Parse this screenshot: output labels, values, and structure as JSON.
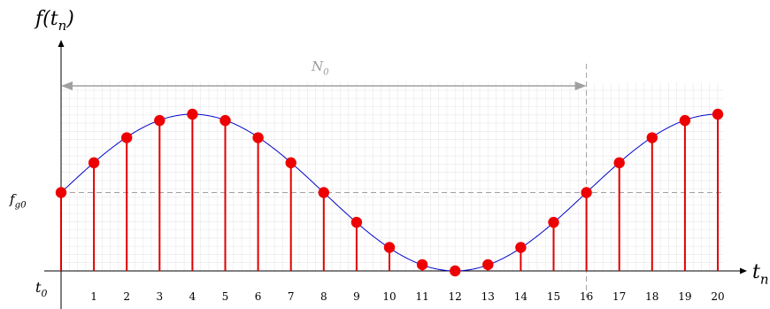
{
  "chart_data": {
    "type": "stem",
    "title": "",
    "xlabel": "t_n",
    "ylabel": "f(t_n)",
    "x_origin_label": "t_0",
    "y_mean_label": "f_g0",
    "period_label": "N_0",
    "period_start": 0,
    "period_end": 16,
    "xlim": [
      0,
      20
    ],
    "ylim": [
      -0.06,
      1.0
    ],
    "mean_value": 0.5,
    "grid": true,
    "x_ticks": [
      "1",
      "2",
      "3",
      "4",
      "5",
      "6",
      "7",
      "8",
      "9",
      "10",
      "11",
      "12",
      "13",
      "14",
      "15",
      "16",
      "17",
      "18",
      "19",
      "20"
    ],
    "series": [
      {
        "x": [
          0,
          1,
          2,
          3,
          4,
          5,
          6,
          7,
          8,
          9,
          10,
          11,
          12,
          13,
          14,
          15,
          16,
          17,
          18,
          19,
          20
        ],
        "values": [
          0.5,
          0.69,
          0.85,
          0.96,
          1.0,
          0.96,
          0.85,
          0.69,
          0.5,
          0.31,
          0.15,
          0.04,
          0.0,
          0.04,
          0.15,
          0.31,
          0.5,
          0.69,
          0.85,
          0.96,
          1.0
        ]
      }
    ],
    "colors": {
      "stem": "#e00000",
      "marker": "#ee0000",
      "curve": "#0000cc",
      "grid": "#e8e8e8",
      "guide": "#a0a0a0",
      "axis": "#000000"
    }
  }
}
